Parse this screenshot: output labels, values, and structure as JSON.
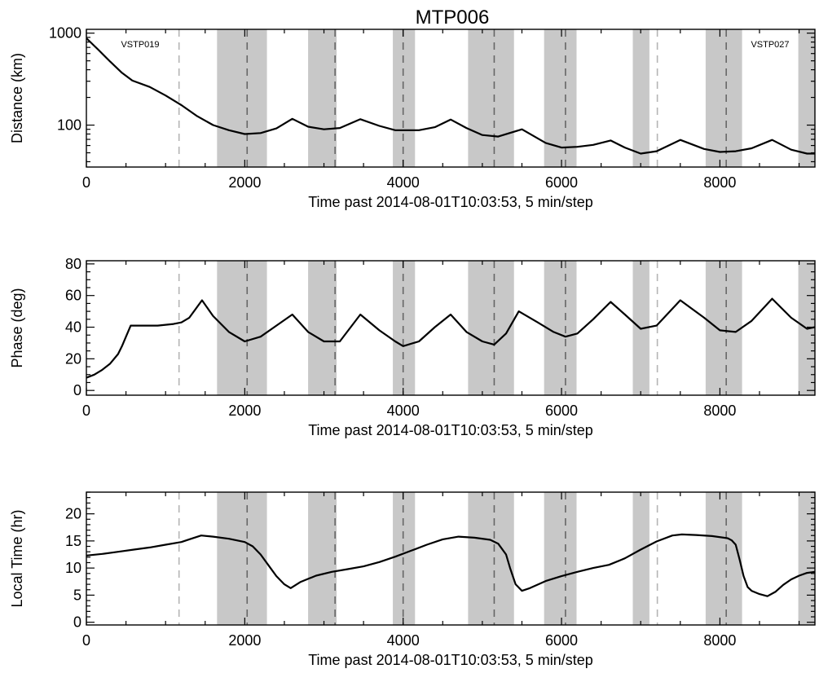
{
  "title": "MTP006",
  "colors": {
    "shade": "#c8c8c8",
    "line": "#000000",
    "dash_gray": "#b4b4b4",
    "dash_dark": "#666666"
  },
  "shaded_intervals": [
    [
      1650,
      2280
    ],
    [
      2800,
      3160
    ],
    [
      3870,
      4150
    ],
    [
      4820,
      5400
    ],
    [
      5780,
      6190
    ],
    [
      6900,
      7110
    ],
    [
      7820,
      8280
    ],
    [
      8990,
      9200
    ]
  ],
  "gray_dashed_lines": [
    1170,
    7210
  ],
  "dark_dashed_lines": [
    2030,
    3140,
    4000,
    5150,
    6050,
    8080
  ],
  "annotations": [
    "VSTP019",
    "VSTP027"
  ],
  "chart_data": [
    {
      "type": "line",
      "panel": "distance",
      "title": "MTP006",
      "xlabel": "Time past 2014-08-01T10:03:53, 5 min/step",
      "ylabel": "Distance (km)",
      "yscale": "log",
      "xlim": [
        0,
        9200
      ],
      "ylim": [
        35,
        1100
      ],
      "xticks": [
        "0",
        "2000",
        "4000",
        "6000",
        "8000"
      ],
      "yticks": [
        "100",
        "1000"
      ],
      "annotations": [
        "VSTP019",
        "VSTP027"
      ],
      "x": [
        0,
        150,
        300,
        450,
        580,
        800,
        1000,
        1200,
        1400,
        1600,
        1800,
        2000,
        2200,
        2400,
        2600,
        2800,
        3000,
        3200,
        3460,
        3700,
        3900,
        4200,
        4400,
        4600,
        4800,
        5000,
        5200,
        5500,
        5800,
        6000,
        6200,
        6400,
        6620,
        6800,
        7000,
        7200,
        7500,
        7800,
        8000,
        8200,
        8400,
        8660,
        8900,
        9100,
        9200
      ],
      "y": [
        880,
        660,
        490,
        370,
        305,
        260,
        210,
        165,
        125,
        100,
        88,
        80,
        82,
        92,
        117,
        96,
        90,
        93,
        116,
        98,
        88,
        88,
        95,
        115,
        93,
        78,
        75,
        90,
        64,
        57,
        58,
        61,
        68,
        57,
        49,
        52,
        69,
        55,
        51,
        52,
        56,
        69,
        54,
        49,
        49
      ]
    },
    {
      "type": "line",
      "panel": "phase",
      "xlabel": "Time past 2014-08-01T10:03:53, 5 min/step",
      "ylabel": "Phase (deg)",
      "xlim": [
        0,
        9200
      ],
      "ylim": [
        -3,
        82
      ],
      "xticks": [
        "0",
        "2000",
        "4000",
        "6000",
        "8000"
      ],
      "yticks": [
        "0",
        "20",
        "40",
        "60",
        "80"
      ],
      "x": [
        0,
        100,
        200,
        300,
        400,
        450,
        500,
        560,
        700,
        900,
        1100,
        1200,
        1300,
        1460,
        1600,
        1800,
        2000,
        2200,
        2400,
        2600,
        2800,
        3000,
        3200,
        3460,
        3700,
        3900,
        4000,
        4200,
        4400,
        4600,
        4800,
        5000,
        5150,
        5300,
        5460,
        5700,
        5900,
        6050,
        6200,
        6400,
        6620,
        6800,
        7000,
        7200,
        7500,
        7800,
        8000,
        8200,
        8400,
        8660,
        8900,
        9100,
        9200
      ],
      "y": [
        8,
        10,
        13,
        17,
        23,
        28,
        34,
        41,
        41,
        41,
        42,
        43,
        46,
        57,
        47,
        37,
        31,
        34,
        41,
        48,
        37,
        31,
        31,
        48,
        38,
        31,
        28,
        31,
        40,
        48,
        37,
        31,
        29,
        36,
        50,
        43,
        37,
        34,
        36,
        45,
        56,
        48,
        39,
        41,
        57,
        46,
        38,
        37,
        44,
        58,
        46,
        39,
        40
      ]
    },
    {
      "type": "line",
      "panel": "local-time",
      "xlabel": "Time past 2014-08-01T10:03:53, 5 min/step",
      "ylabel": "Local Time (hr)",
      "xlim": [
        0,
        9200
      ],
      "ylim": [
        -0.5,
        24
      ],
      "xticks": [
        "0",
        "2000",
        "4000",
        "6000",
        "8000"
      ],
      "yticks": [
        "0",
        "5",
        "10",
        "15",
        "20"
      ],
      "x": [
        0,
        200,
        400,
        600,
        800,
        1000,
        1200,
        1300,
        1450,
        1600,
        1800,
        2000,
        2100,
        2200,
        2300,
        2400,
        2500,
        2580,
        2700,
        2900,
        3100,
        3300,
        3500,
        3700,
        3900,
        4100,
        4300,
        4500,
        4700,
        4900,
        5100,
        5200,
        5300,
        5350,
        5420,
        5500,
        5600,
        5800,
        6000,
        6200,
        6400,
        6600,
        6800,
        7000,
        7200,
        7400,
        7520,
        7700,
        7900,
        8100,
        8150,
        8200,
        8250,
        8300,
        8350,
        8400,
        8500,
        8600,
        8700,
        8800,
        8900,
        9000,
        9100,
        9200
      ],
      "y": [
        12.3,
        12.6,
        13,
        13.4,
        13.8,
        14.3,
        14.8,
        15.3,
        16,
        15.8,
        15.4,
        14.8,
        14,
        12.5,
        10.5,
        8.5,
        7,
        6.3,
        7.4,
        8.6,
        9.3,
        9.8,
        10.3,
        11.1,
        12.1,
        13.2,
        14.3,
        15.3,
        15.8,
        15.6,
        15.2,
        14.5,
        12.5,
        10,
        7,
        5.8,
        6.3,
        7.6,
        8.5,
        9.3,
        10,
        10.6,
        11.8,
        13.4,
        14.9,
        16,
        16.2,
        16.1,
        15.9,
        15.5,
        15.1,
        14.3,
        11.5,
        8.5,
        6.5,
        5.8,
        5.2,
        4.8,
        5.6,
        6.9,
        7.9,
        8.6,
        9.1,
        9.3
      ]
    }
  ]
}
